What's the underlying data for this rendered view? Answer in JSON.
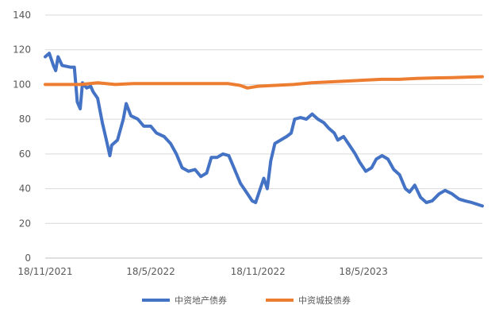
{
  "chart_data": {
    "type": "line",
    "title": "",
    "xlabel": "",
    "ylabel": "",
    "ylim": [
      0,
      140
    ],
    "y_ticks": [
      0,
      20,
      40,
      60,
      80,
      100,
      120,
      140
    ],
    "x_range": [
      "2021-11-18",
      "2023-12-08"
    ],
    "x_ticks": [
      {
        "date": "2021-11-18",
        "label": "18/11/2021"
      },
      {
        "date": "2022-05-18",
        "label": "18/5/2022"
      },
      {
        "date": "2022-11-18",
        "label": "18/11/2022"
      },
      {
        "date": "2023-05-18",
        "label": "18/5/2023"
      }
    ],
    "grid": "horizontal",
    "legend_position": "bottom",
    "series": [
      {
        "name": "中资地产债券",
        "color": "#4472C4",
        "points": [
          [
            "2021-11-18",
            116
          ],
          [
            "2021-11-25",
            118
          ],
          [
            "2021-12-02",
            111
          ],
          [
            "2021-12-06",
            108
          ],
          [
            "2021-12-10",
            116
          ],
          [
            "2021-12-17",
            111
          ],
          [
            "2021-12-31",
            110
          ],
          [
            "2022-01-07",
            110
          ],
          [
            "2022-01-12",
            90
          ],
          [
            "2022-01-17",
            86
          ],
          [
            "2022-01-21",
            101
          ],
          [
            "2022-01-28",
            98
          ],
          [
            "2022-02-04",
            99
          ],
          [
            "2022-02-08",
            96
          ],
          [
            "2022-02-16",
            92
          ],
          [
            "2022-02-24",
            78
          ],
          [
            "2022-03-03",
            68
          ],
          [
            "2022-03-09",
            59
          ],
          [
            "2022-03-12",
            65
          ],
          [
            "2022-03-22",
            68
          ],
          [
            "2022-04-01",
            80
          ],
          [
            "2022-04-06",
            89
          ],
          [
            "2022-04-14",
            82
          ],
          [
            "2022-04-26",
            80
          ],
          [
            "2022-05-06",
            76
          ],
          [
            "2022-05-18",
            76
          ],
          [
            "2022-05-28",
            72
          ],
          [
            "2022-06-10",
            70
          ],
          [
            "2022-06-21",
            66
          ],
          [
            "2022-07-01",
            60
          ],
          [
            "2022-07-11",
            52
          ],
          [
            "2022-07-22",
            50
          ],
          [
            "2022-08-02",
            51
          ],
          [
            "2022-08-12",
            47
          ],
          [
            "2022-08-22",
            49
          ],
          [
            "2022-08-30",
            58
          ],
          [
            "2022-09-09",
            58
          ],
          [
            "2022-09-19",
            60
          ],
          [
            "2022-09-29",
            59
          ],
          [
            "2022-10-09",
            51
          ],
          [
            "2022-10-19",
            43
          ],
          [
            "2022-10-29",
            38
          ],
          [
            "2022-11-08",
            33
          ],
          [
            "2022-11-14",
            32
          ],
          [
            "2022-11-22",
            40
          ],
          [
            "2022-11-28",
            46
          ],
          [
            "2022-12-04",
            40
          ],
          [
            "2022-12-10",
            56
          ],
          [
            "2022-12-17",
            66
          ],
          [
            "2022-12-27",
            68
          ],
          [
            "2023-01-06",
            70
          ],
          [
            "2023-01-14",
            72
          ],
          [
            "2023-01-20",
            80
          ],
          [
            "2023-01-30",
            81
          ],
          [
            "2023-02-09",
            80
          ],
          [
            "2023-02-19",
            83
          ],
          [
            "2023-03-01",
            80
          ],
          [
            "2023-03-11",
            78
          ],
          [
            "2023-03-19",
            75
          ],
          [
            "2023-03-29",
            72
          ],
          [
            "2023-04-04",
            68
          ],
          [
            "2023-04-14",
            70
          ],
          [
            "2023-04-24",
            65
          ],
          [
            "2023-05-04",
            60
          ],
          [
            "2023-05-12",
            55
          ],
          [
            "2023-05-22",
            50
          ],
          [
            "2023-06-01",
            52
          ],
          [
            "2023-06-09",
            57
          ],
          [
            "2023-06-19",
            59
          ],
          [
            "2023-06-29",
            57
          ],
          [
            "2023-07-09",
            51
          ],
          [
            "2023-07-19",
            48
          ],
          [
            "2023-07-29",
            40
          ],
          [
            "2023-08-05",
            38
          ],
          [
            "2023-08-14",
            42
          ],
          [
            "2023-08-24",
            35
          ],
          [
            "2023-09-03",
            32
          ],
          [
            "2023-09-13",
            33
          ],
          [
            "2023-09-25",
            37
          ],
          [
            "2023-10-05",
            39
          ],
          [
            "2023-10-17",
            37
          ],
          [
            "2023-10-29",
            34
          ],
          [
            "2023-11-08",
            33
          ],
          [
            "2023-11-20",
            32
          ],
          [
            "2023-12-08",
            30
          ]
        ]
      },
      {
        "name": "中资城投债券",
        "color": "#ED7D31",
        "points": [
          [
            "2021-11-18",
            100
          ],
          [
            "2022-01-18",
            100
          ],
          [
            "2022-02-16",
            101
          ],
          [
            "2022-03-18",
            100
          ],
          [
            "2022-04-18",
            100.5
          ],
          [
            "2022-06-18",
            100.5
          ],
          [
            "2022-08-18",
            100.5
          ],
          [
            "2022-09-28",
            100.5
          ],
          [
            "2022-10-18",
            99.5
          ],
          [
            "2022-10-31",
            98
          ],
          [
            "2022-11-18",
            99
          ],
          [
            "2022-12-18",
            99.5
          ],
          [
            "2023-01-18",
            100
          ],
          [
            "2023-02-18",
            101
          ],
          [
            "2023-03-18",
            101.5
          ],
          [
            "2023-04-18",
            102
          ],
          [
            "2023-05-18",
            102.5
          ],
          [
            "2023-06-18",
            103
          ],
          [
            "2023-07-18",
            103
          ],
          [
            "2023-08-18",
            103.5
          ],
          [
            "2023-09-18",
            103.8
          ],
          [
            "2023-10-18",
            104
          ],
          [
            "2023-11-18",
            104.3
          ],
          [
            "2023-12-08",
            104.5
          ]
        ]
      }
    ]
  }
}
